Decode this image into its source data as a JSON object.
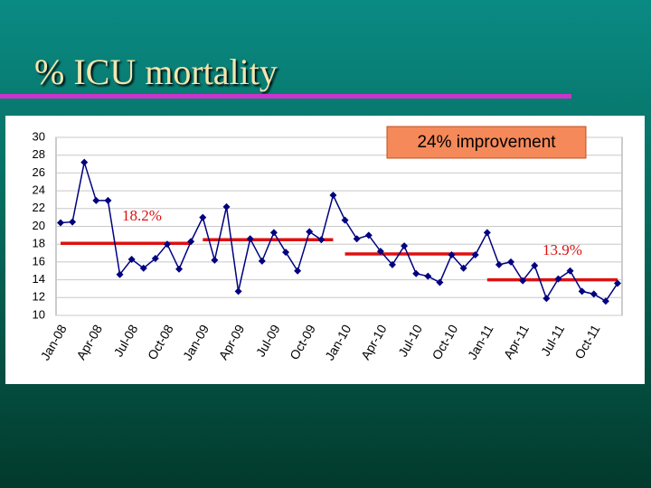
{
  "title": "% ICU mortality",
  "chart_data": {
    "type": "line",
    "categories": [
      "Jan-08",
      null,
      null,
      "Apr-08",
      null,
      null,
      "Jul-08",
      null,
      null,
      "Oct-08",
      null,
      null,
      "Jan-09",
      null,
      null,
      "Apr-09",
      null,
      null,
      "Jul-09",
      null,
      null,
      "Oct-09",
      null,
      null,
      "Jan-10",
      null,
      null,
      "Apr-10",
      null,
      null,
      "Jul-10",
      null,
      null,
      "Oct-10",
      null,
      null,
      "Jan-11",
      null,
      null,
      "Apr-11",
      null,
      null,
      "Jul-11",
      null,
      null,
      "Oct-11",
      null,
      null
    ],
    "series": [
      {
        "color": "#000080",
        "values": [
          20.4,
          20.5,
          27.2,
          22.9,
          22.9,
          14.6,
          16.3,
          15.3,
          16.4,
          18.0,
          15.2,
          18.3,
          21.0,
          16.2,
          22.2,
          12.7,
          18.6,
          16.1,
          19.3,
          17.1,
          15.0,
          19.4,
          18.5,
          23.5,
          20.7,
          18.6,
          19.0,
          17.2,
          15.7,
          17.8,
          14.7,
          14.4,
          13.7,
          16.8,
          15.3,
          16.8,
          19.3,
          15.7,
          16.0,
          13.9,
          15.6,
          11.9,
          14.1,
          15.0,
          12.7,
          12.4,
          11.6,
          13.6
        ]
      }
    ],
    "mean_lines": {
      "color": "#e01010",
      "values": [
        18.1,
        18.5,
        16.9,
        14.0
      ]
    },
    "ylim": [
      10,
      30
    ],
    "yticks": [
      10,
      12,
      14,
      16,
      18,
      20,
      22,
      24,
      26,
      28,
      30
    ],
    "grid": true,
    "annotations": [
      "24% improvement",
      "18.2%",
      "13.9%"
    ]
  }
}
